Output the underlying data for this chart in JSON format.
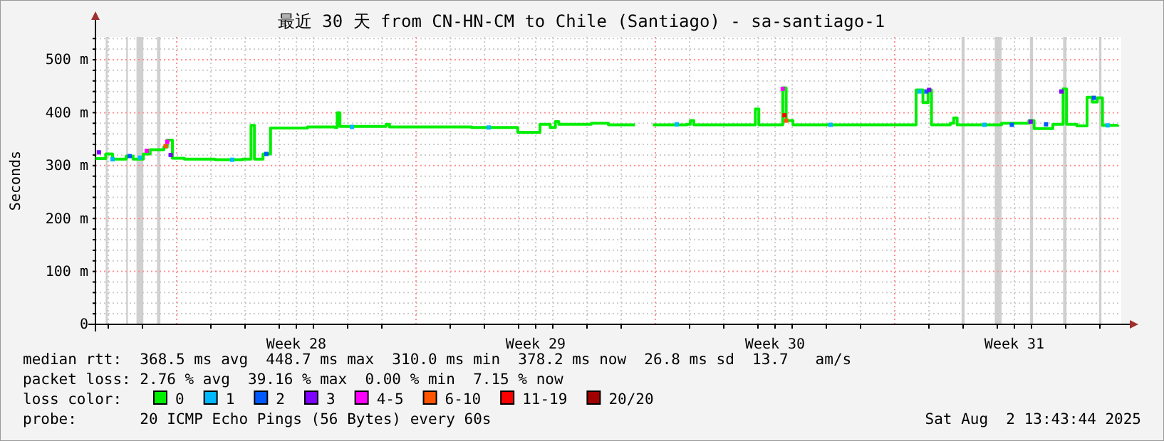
{
  "chart_data": {
    "type": "step",
    "title": "最近 30 天 from CN-HN-CM to Chile (Santiago) - sa-santiago-1",
    "ylabel": "Seconds",
    "legend_title": "loss color:",
    "legend": "bottom",
    "grid": true,
    "xlim": [
      "2025-07-03T15:00",
      "2025-08-02T15:00"
    ],
    "ylim": [
      0,
      543
    ],
    "xticks": [
      {
        "value": "2025-07-04T00:00",
        "label": null
      },
      {
        "value": "2025-07-05T00:00",
        "label": null
      },
      {
        "value": "2025-07-07T00:00",
        "label": null
      },
      {
        "value": "2025-07-08T00:00",
        "label": null
      },
      {
        "value": "2025-07-09T00:00",
        "label": null
      },
      {
        "value": "2025-07-09T12:00",
        "label": "Week 28"
      },
      {
        "value": "2025-07-10T00:00",
        "label": null
      },
      {
        "value": "2025-07-11T00:00",
        "label": null
      },
      {
        "value": "2025-07-12T00:00",
        "label": null
      },
      {
        "value": "2025-07-14T00:00",
        "label": null
      },
      {
        "value": "2025-07-15T00:00",
        "label": null
      },
      {
        "value": "2025-07-16T00:00",
        "label": null
      },
      {
        "value": "2025-07-16T12:00",
        "label": "Week 29"
      },
      {
        "value": "2025-07-17T00:00",
        "label": null
      },
      {
        "value": "2025-07-18T00:00",
        "label": null
      },
      {
        "value": "2025-07-19T00:00",
        "label": null
      },
      {
        "value": "2025-07-21T00:00",
        "label": null
      },
      {
        "value": "2025-07-22T00:00",
        "label": null
      },
      {
        "value": "2025-07-23T00:00",
        "label": null
      },
      {
        "value": "2025-07-23T12:00",
        "label": "Week 30"
      },
      {
        "value": "2025-07-24T00:00",
        "label": null
      },
      {
        "value": "2025-07-25T00:00",
        "label": null
      },
      {
        "value": "2025-07-26T00:00",
        "label": null
      },
      {
        "value": "2025-07-28T00:00",
        "label": null
      },
      {
        "value": "2025-07-29T00:00",
        "label": null
      },
      {
        "value": "2025-07-30T00:00",
        "label": null
      },
      {
        "value": "2025-07-30T12:00",
        "label": "Week 31"
      },
      {
        "value": "2025-07-31T00:00",
        "label": null
      },
      {
        "value": "2025-08-01T00:00",
        "label": null
      },
      {
        "value": "2025-08-02T00:00",
        "label": null
      }
    ],
    "yticks": [
      0,
      {
        "value": 20,
        "label": null
      },
      {
        "value": 40,
        "label": null
      },
      {
        "value": 60,
        "label": null
      },
      {
        "value": 80,
        "label": null
      },
      {
        "value": 100,
        "label": "100 m"
      },
      {
        "value": 120,
        "label": null
      },
      {
        "value": 140,
        "label": null
      },
      {
        "value": 160,
        "label": null
      },
      {
        "value": 180,
        "label": null
      },
      {
        "value": 200,
        "label": "200 m"
      },
      {
        "value": 220,
        "label": null
      },
      {
        "value": 240,
        "label": null
      },
      {
        "value": 260,
        "label": null
      },
      {
        "value": 280,
        "label": null
      },
      {
        "value": 300,
        "label": "300 m"
      },
      {
        "value": 320,
        "label": null
      },
      {
        "value": 340,
        "label": null
      },
      {
        "value": 360,
        "label": null
      },
      {
        "value": 380,
        "label": null
      },
      {
        "value": 400,
        "label": "400 m"
      },
      {
        "value": 420,
        "label": null
      },
      {
        "value": 440,
        "label": null
      },
      {
        "value": 460,
        "label": null
      },
      {
        "value": 480,
        "label": null
      },
      {
        "value": 500,
        "label": "500 m"
      },
      {
        "value": 520,
        "label": null
      },
      {
        "value": 540,
        "label": null
      }
    ],
    "ref_lines": [
      {
        "axis": "x",
        "value": "2025-07-06T00:00",
        "color": "#ff9090",
        "line_style": "dashed"
      },
      {
        "axis": "x",
        "value": "2025-07-13T00:00",
        "color": "#ff9090",
        "line_style": "dashed"
      },
      {
        "axis": "x",
        "value": "2025-07-20T00:00",
        "color": "#ff9090",
        "line_style": "dashed"
      },
      {
        "axis": "x",
        "value": "2025-07-27T00:00",
        "color": "#ff9090",
        "line_style": "dashed"
      }
    ],
    "bands": [
      {
        "axis": "x",
        "from": "2025-07-03T22:12",
        "to": "2025-07-03T23:38",
        "color": "#d0d0d0"
      },
      {
        "axis": "x",
        "from": "2025-07-04T12:36",
        "to": "2025-07-04T13:48",
        "color": "#d0d0d0"
      },
      {
        "axis": "x",
        "from": "2025-07-04T19:48",
        "to": "2025-07-05T00:36",
        "color": "#d0d0d0"
      },
      {
        "axis": "x",
        "from": "2025-07-05T10:12",
        "to": "2025-07-05T12:36",
        "color": "#d0d0d0"
      },
      {
        "axis": "x",
        "from": "2025-07-28T22:55",
        "to": "2025-07-29T01:05",
        "color": "#d0d0d0"
      },
      {
        "axis": "x",
        "from": "2025-07-29T22:12",
        "to": "2025-07-30T03:00",
        "color": "#d0d0d0"
      },
      {
        "axis": "x",
        "from": "2025-07-30T22:55",
        "to": "2025-07-31T01:05",
        "color": "#d0d0d0"
      },
      {
        "axis": "x",
        "from": "2025-07-31T22:12",
        "to": "2025-08-01T00:36",
        "color": "#d0d0d0"
      },
      {
        "axis": "x",
        "from": "2025-08-01T23:24",
        "to": "2025-08-02T01:05",
        "color": "#d0d0d0"
      }
    ],
    "series": [
      {
        "name": "0",
        "color": "#00ee00",
        "x": [
          "2025-07-03T15:00",
          "2025-07-03T22:12",
          "2025-07-04T03:00",
          "2025-07-04T12:36",
          "2025-07-04T17:24",
          "2025-07-05T00:36",
          "2025-07-05T05:24",
          "2025-07-05T15:00",
          "2025-07-05T17:24",
          "2025-07-05T21:00",
          "2025-07-06T05:24",
          "2025-07-07T03:00",
          "2025-07-07T22:12",
          "2025-07-08T04:12",
          "2025-07-08T06:36",
          "2025-07-08T12:36",
          "2025-07-08T17:53",
          "2025-07-09T19:48",
          "2025-07-10T15:00",
          "2025-07-10T16:41",
          "2025-07-10T18:36",
          "2025-07-11T15:00",
          "2025-07-12T03:00",
          "2025-07-12T05:24",
          "2025-07-13T15:00",
          "2025-07-14T15:00",
          "2025-07-15T23:24",
          "2025-07-16T15:00",
          "2025-07-16T22:12",
          "2025-07-17T01:48",
          "2025-07-17T04:12",
          "2025-07-18T03:00",
          "2025-07-18T15:00",
          "2025-07-19T09:43",
          "2025-07-19T09:58",
          "2025-07-19T22:12",
          "2025-07-20T22:12",
          "2025-07-21T00:36",
          "2025-07-21T03:00",
          "2025-07-22T19:48",
          "2025-07-22T22:12",
          "2025-07-23T00:36",
          "2025-07-23T16:12",
          "2025-07-23T17:24",
          "2025-07-23T19:48",
          "2025-07-24T00:36",
          "2025-07-27T12:36",
          "2025-07-27T15:00",
          "2025-07-27T19:48",
          "2025-07-27T23:24",
          "2025-07-28T01:48",
          "2025-07-28T15:00",
          "2025-07-28T17:24",
          "2025-07-28T19:48",
          "2025-07-29T15:00",
          "2025-07-30T03:00",
          "2025-07-30T22:12",
          "2025-07-31T01:48",
          "2025-07-31T15:00",
          "2025-07-31T22:12",
          "2025-08-01T00:36",
          "2025-08-01T07:48",
          "2025-08-01T15:00",
          "2025-08-01T18:36",
          "2025-08-01T22:12",
          "2025-08-02T01:48",
          "2025-08-02T12:36"
        ],
        "values": [
          313,
          322,
          312,
          318,
          312,
          322,
          330,
          335,
          348,
          314,
          312,
          311,
          312,
          376,
          312,
          322,
          371,
          373,
          372,
          400,
          374,
          374,
          378,
          373,
          373,
          372,
          363,
          378,
          372,
          383,
          378,
          380,
          377,
          377,
          null,
          377,
          378,
          385,
          377,
          377,
          407,
          377,
          377,
          447,
          385,
          377,
          377,
          443,
          419,
          443,
          377,
          380,
          390,
          377,
          377,
          380,
          385,
          370,
          378,
          445,
          378,
          375,
          429,
          420,
          428,
          376,
          377
        ]
      },
      {
        "name": "1",
        "type": "scatter",
        "marker": "square",
        "color": "#00b8ff",
        "x": [
          "2025-07-04T03:00",
          "2025-07-04T22:12",
          "2025-07-07T15:00",
          "2025-07-11T03:00",
          "2025-07-15T03:00",
          "2025-07-20T15:00",
          "2025-07-25T03:00",
          "2025-07-27T17:24",
          "2025-07-29T15:00",
          "2025-08-02T05:24"
        ],
        "values": [
          312,
          315,
          311,
          373,
          372,
          378,
          377,
          440,
          377,
          376
        ]
      },
      {
        "name": "2",
        "type": "scatter",
        "marker": "square",
        "color": "#0059ff",
        "x": [
          "2025-07-04T15:00",
          "2025-07-08T15:00",
          "2025-07-27T22:12",
          "2025-07-30T10:12",
          "2025-07-31T10:12",
          "2025-08-01T19:48"
        ],
        "values": [
          318,
          322,
          440,
          377,
          378,
          428
        ]
      },
      {
        "name": "3",
        "type": "scatter",
        "marker": "square",
        "color": "#7e00ff",
        "x": [
          "2025-07-03T17:24",
          "2025-07-05T19:48",
          "2025-07-28T00:07",
          "2025-07-30T23:24",
          "2025-07-31T21:00"
        ],
        "values": [
          325,
          320,
          443,
          383,
          440
        ]
      },
      {
        "name": "4-5",
        "type": "scatter",
        "marker": "square",
        "color": "#ff00ff",
        "x": [
          "2025-07-05T03:00",
          "2025-07-05T17:24",
          "2025-07-23T17:24"
        ],
        "values": [
          328,
          345,
          445
        ]
      },
      {
        "name": "6-10",
        "type": "scatter",
        "marker": "square",
        "color": "#ff5500",
        "x": [
          "2025-07-05T16:12",
          "2025-07-23T19:48"
        ],
        "values": [
          337,
          385
        ]
      },
      {
        "name": "11-19",
        "type": "scatter",
        "marker": "square",
        "color": "#ff0000",
        "x": [
          "2025-07-23T18:36"
        ],
        "values": [
          395
        ]
      },
      {
        "name": "20/20",
        "type": "scatter",
        "marker": "square",
        "color": "#a10000"
      }
    ],
    "annotations": [
      "median rtt:  368.5 ms avg  448.7 ms max  310.0 ms min  378.2 ms now  26.8 ms sd  13.7   am/s",
      "packet loss: 2.76 % avg  39.16 % max  0.00 % min  7.15 % now",
      "probe:       20 ICMP Echo Pings (56 Bytes) every 60s",
      "Sat Aug  2 13:43:44 2025"
    ]
  }
}
